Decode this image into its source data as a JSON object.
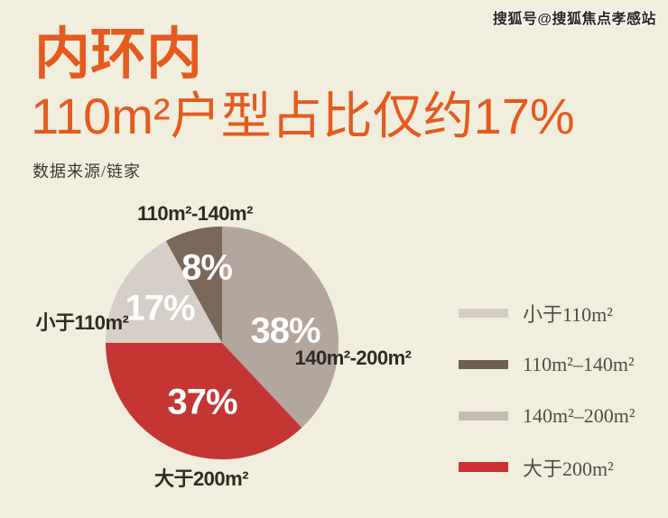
{
  "page": {
    "background_color": "#f2eedd",
    "watermark": "搜狐号@搜狐焦点孝感站"
  },
  "header": {
    "title": "内环内",
    "subtitle": "110m²户型占比仅约17%",
    "source": "数据来源/链家",
    "accent_color": "#e55a1f"
  },
  "chart_data": {
    "type": "pie",
    "title": "内环内110m²户型占比仅约17%",
    "source_label": "数据来源/链家",
    "start_angle_deg": 0,
    "direction": "clockwise",
    "value_suffix": "%",
    "slices": [
      {
        "label": "140m²-200m²",
        "value": 38,
        "display": "38%",
        "color": "#b3a69d"
      },
      {
        "label": "大于200m²",
        "value": 37,
        "display": "37%",
        "color": "#c43534"
      },
      {
        "label": "小于110m²",
        "value": 17,
        "display": "17%",
        "color": "#d6cfc7"
      },
      {
        "label": "110m²-140m²",
        "value": 8,
        "display": "8%",
        "color": "#7b6759"
      }
    ],
    "legend_position": "right",
    "legend": [
      {
        "label": "小于110m²",
        "color": "#d4cdc6"
      },
      {
        "label": "110m²–140m²",
        "color": "#6f5f53"
      },
      {
        "label": "140m²–200m²",
        "color": "#c5bcb4"
      },
      {
        "label": "大于200m²",
        "color": "#cc3030"
      }
    ]
  }
}
